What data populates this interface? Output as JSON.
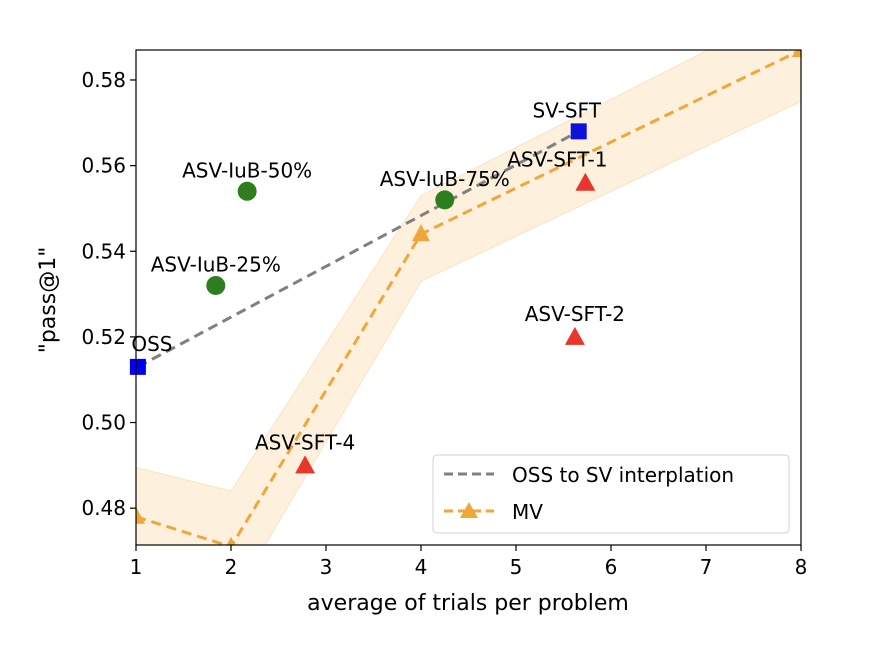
{
  "chart_data": {
    "type": "scatter",
    "title": "",
    "xlabel": "average of trials per problem",
    "ylabel": "\"pass@1\"",
    "xlim": [
      1,
      8
    ],
    "ylim": [
      0.4714,
      0.587
    ],
    "x_ticks": [
      1,
      2,
      3,
      4,
      5,
      6,
      7,
      8
    ],
    "x_tick_labels": [
      "1",
      "2",
      "3",
      "4",
      "5",
      "6",
      "7",
      "8"
    ],
    "y_ticks": [
      0.48,
      0.5,
      0.52,
      0.54,
      0.56,
      0.58
    ],
    "y_tick_labels": [
      "0.48",
      "0.50",
      "0.52",
      "0.54",
      "0.56",
      "0.58"
    ],
    "grid": false,
    "legend": {
      "placement": "lower-right",
      "entries": [
        {
          "label": "OSS to SV interplation",
          "color": "#808080",
          "style": "dashed"
        },
        {
          "label": "MV",
          "color": "#f0a63a",
          "style": "dashed-triangle"
        }
      ]
    },
    "series": [
      {
        "name": "OSS to SV interplation",
        "kind": "line",
        "color": "#808080",
        "x": [
          1.02,
          5.66
        ],
        "y": [
          0.513,
          0.568
        ]
      },
      {
        "name": "MV",
        "kind": "line",
        "color": "#f0a63a",
        "x": [
          1,
          2,
          4,
          8
        ],
        "y": [
          0.478,
          0.471,
          0.544,
          0.587
        ],
        "band_upper": [
          0.4895,
          0.484,
          0.553,
          0.598
        ],
        "band_lower": [
          0.467,
          0.458,
          0.533,
          0.575
        ],
        "band_color": "#fdf0dd"
      }
    ],
    "points": [
      {
        "label": "OSS",
        "x": 1.02,
        "y": 0.513,
        "marker": "square",
        "color": "#0000ee"
      },
      {
        "label": "SV-SFT",
        "x": 5.66,
        "y": 0.568,
        "marker": "square",
        "color": "#1010dd"
      },
      {
        "label": "ASV-IuB-25%",
        "x": 1.84,
        "y": 0.532,
        "marker": "circle",
        "color": "#2e7d1f"
      },
      {
        "label": "ASV-IuB-50%",
        "x": 2.17,
        "y": 0.554,
        "marker": "circle",
        "color": "#2e7d1f"
      },
      {
        "label": "ASV-IuB-75%",
        "x": 4.25,
        "y": 0.552,
        "marker": "circle",
        "color": "#2e7d1f"
      },
      {
        "label": "ASV-SFT-1",
        "x": 5.73,
        "y": 0.556,
        "marker": "triangle",
        "color": "#e8372a"
      },
      {
        "label": "ASV-SFT-2",
        "x": 5.62,
        "y": 0.52,
        "marker": "triangle",
        "color": "#e8372a"
      },
      {
        "label": "ASV-SFT-4",
        "x": 2.78,
        "y": 0.49,
        "marker": "triangle",
        "color": "#e8372a"
      }
    ]
  }
}
